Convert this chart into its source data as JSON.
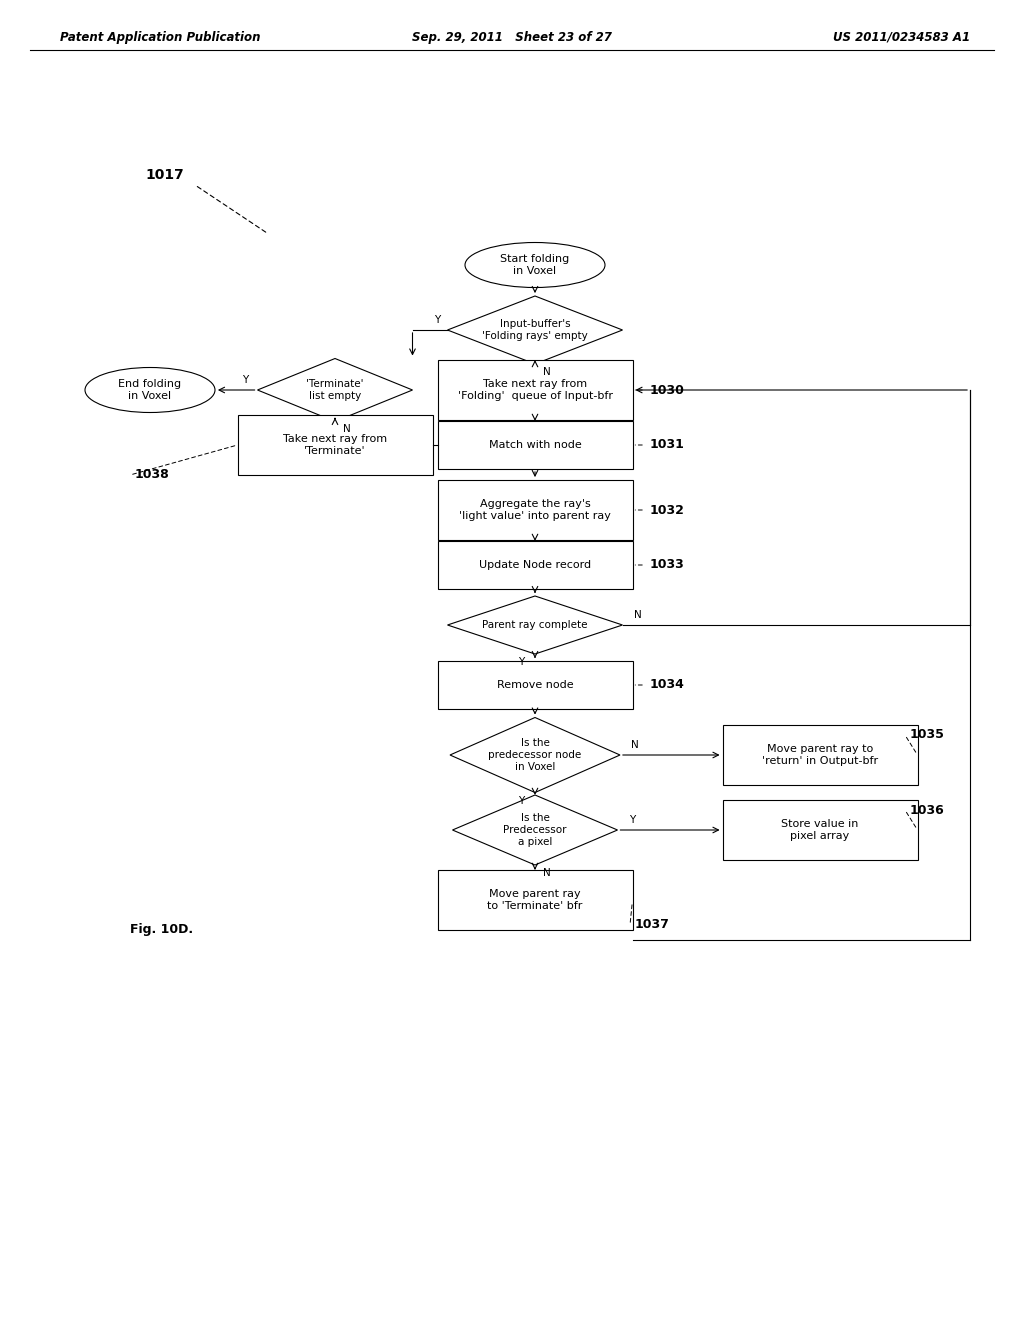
{
  "title_left": "Patent Application Publication",
  "title_mid": "Sep. 29, 2011   Sheet 23 of 27",
  "title_right": "US 2011/0234583 A1",
  "fig_label": "Fig. 10D.",
  "background": "#ffffff",
  "label_1017": "1017",
  "label_1038": "1038",
  "label_1030": "1030",
  "label_1031": "1031",
  "label_1032": "1032",
  "label_1033": "1033",
  "label_1034": "1034",
  "label_1035": "1035",
  "label_1036": "1036",
  "label_1037": "1037"
}
